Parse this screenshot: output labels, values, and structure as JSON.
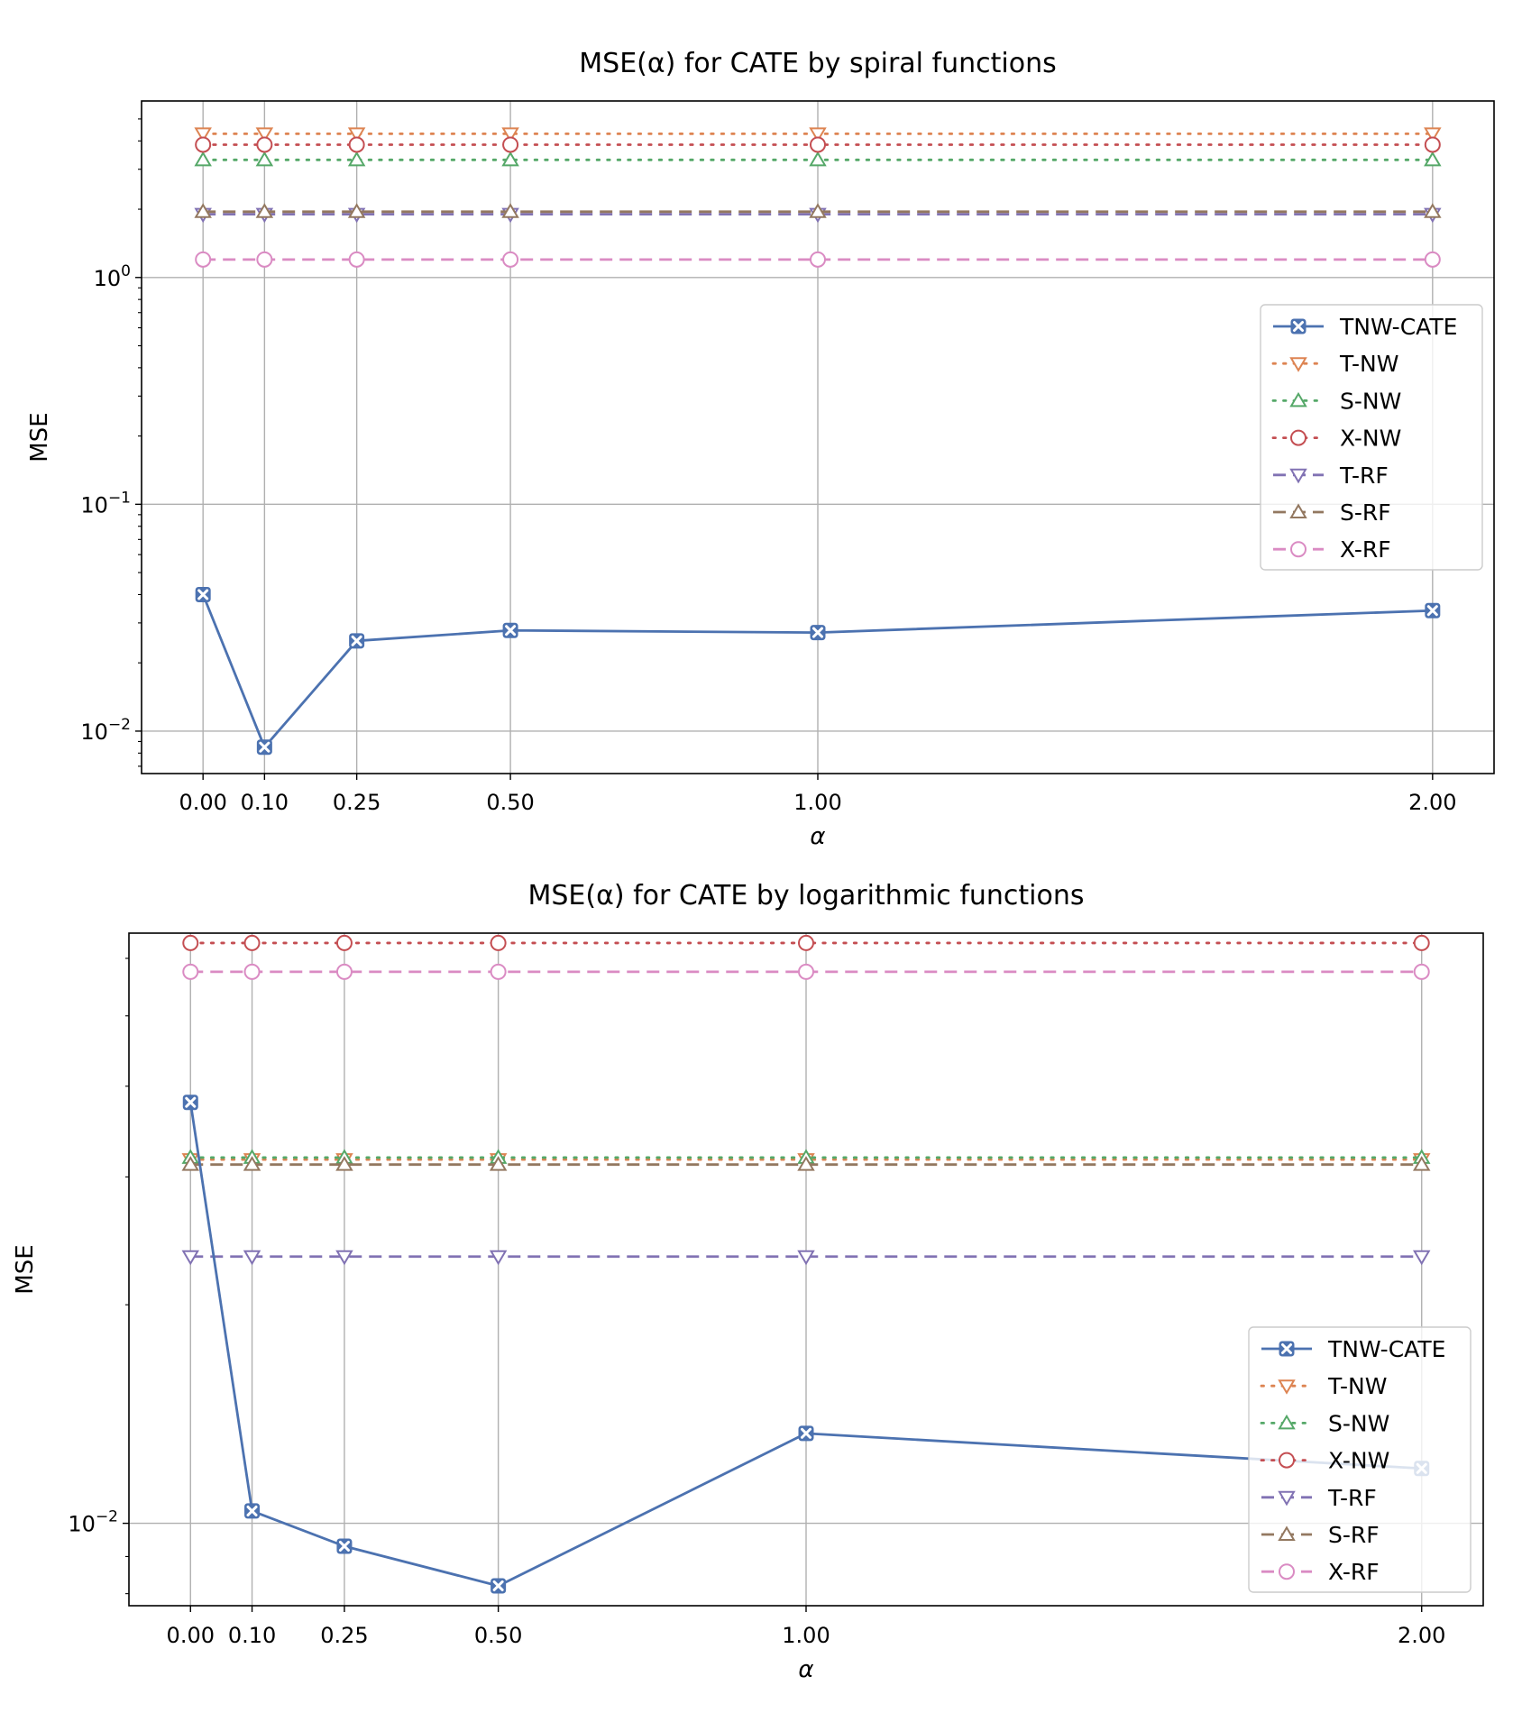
{
  "chart_data": [
    {
      "type": "line",
      "title": "MSE(α) for CATE by spiral functions",
      "xlabel": "α",
      "ylabel": "MSE",
      "yscale": "log",
      "ylim": [
        0.0065,
        6.0
      ],
      "xlim": [
        -0.1,
        2.1
      ],
      "x": [
        0.0,
        0.1,
        0.25,
        0.5,
        1.0,
        2.0
      ],
      "x_tick_labels": [
        "0.00",
        "0.10",
        "0.25",
        "0.50",
        "1.00",
        "2.00"
      ],
      "y_ticks": [
        {
          "value": 0.01,
          "base": "10",
          "exp": "−2"
        },
        {
          "value": 0.1,
          "base": "10",
          "exp": "−1"
        },
        {
          "value": 1.0,
          "base": "10",
          "exp": "0"
        }
      ],
      "minor_y_ticks": [
        0.007,
        0.008,
        0.009,
        0.02,
        0.03,
        0.04,
        0.05,
        0.06,
        0.07,
        0.08,
        0.09,
        0.2,
        0.3,
        0.4,
        0.5,
        0.6,
        0.7,
        0.8,
        0.9,
        2,
        3,
        4,
        5
      ],
      "grid": true,
      "legend_position": "center-right",
      "series": [
        {
          "name": "TNW-CATE",
          "values": [
            0.04,
            0.0085,
            0.025,
            0.0278,
            0.0272,
            0.034
          ],
          "color": "#4c72b0",
          "marker": "x-box",
          "dash": "solid"
        },
        {
          "name": "T-NW",
          "values": [
            4.3,
            4.3,
            4.3,
            4.3,
            4.3,
            4.3
          ],
          "color": "#dd8452",
          "marker": "triangle-down",
          "dash": "dotted"
        },
        {
          "name": "S-NW",
          "values": [
            3.3,
            3.3,
            3.3,
            3.3,
            3.3,
            3.3
          ],
          "color": "#55a868",
          "marker": "triangle-up",
          "dash": "dotted"
        },
        {
          "name": "X-NW",
          "values": [
            3.85,
            3.85,
            3.85,
            3.85,
            3.85,
            3.85
          ],
          "color": "#c44e52",
          "marker": "circle",
          "dash": "dotted"
        },
        {
          "name": "T-RF",
          "values": [
            1.9,
            1.9,
            1.9,
            1.9,
            1.9,
            1.9
          ],
          "color": "#8172b3",
          "marker": "triangle-down",
          "dash": "dashed"
        },
        {
          "name": "S-RF",
          "values": [
            1.95,
            1.95,
            1.95,
            1.95,
            1.95,
            1.95
          ],
          "color": "#937860",
          "marker": "triangle-up",
          "dash": "dashed"
        },
        {
          "name": "X-RF",
          "values": [
            1.2,
            1.2,
            1.2,
            1.2,
            1.2,
            1.2
          ],
          "color": "#da8bc3",
          "marker": "circle",
          "dash": "dashed"
        }
      ]
    },
    {
      "type": "line",
      "title": "MSE(α) for CATE by logarithmic functions",
      "xlabel": "α",
      "ylabel": "MSE",
      "yscale": "log",
      "ylim": [
        0.0077,
        0.065
      ],
      "xlim": [
        -0.1,
        2.1
      ],
      "x": [
        0.0,
        0.1,
        0.25,
        0.5,
        1.0,
        2.0
      ],
      "x_tick_labels": [
        "0.00",
        "0.10",
        "0.25",
        "0.50",
        "1.00",
        "2.00"
      ],
      "y_ticks": [
        {
          "value": 0.01,
          "base": "10",
          "exp": "−2"
        }
      ],
      "minor_y_ticks": [
        0.008,
        0.009,
        0.02,
        0.03,
        0.04,
        0.05,
        0.06
      ],
      "grid": true,
      "legend_position": "lower-right",
      "series": [
        {
          "name": "TNW-CATE",
          "values": [
            0.038,
            0.0104,
            0.0093,
            0.0082,
            0.0133,
            0.0119
          ],
          "color": "#4c72b0",
          "marker": "x-box",
          "dash": "solid"
        },
        {
          "name": "T-NW",
          "values": [
            0.0317,
            0.0317,
            0.0317,
            0.0317,
            0.0317,
            0.0317
          ],
          "color": "#dd8452",
          "marker": "triangle-down",
          "dash": "dotted"
        },
        {
          "name": "S-NW",
          "values": [
            0.0319,
            0.0319,
            0.0319,
            0.0319,
            0.0319,
            0.0319
          ],
          "color": "#55a868",
          "marker": "triangle-up",
          "dash": "dotted"
        },
        {
          "name": "X-NW",
          "values": [
            0.063,
            0.063,
            0.063,
            0.063,
            0.063,
            0.063
          ],
          "color": "#c44e52",
          "marker": "circle",
          "dash": "dotted"
        },
        {
          "name": "T-RF",
          "values": [
            0.0233,
            0.0233,
            0.0233,
            0.0233,
            0.0233,
            0.0233
          ],
          "color": "#8172b3",
          "marker": "triangle-down",
          "dash": "dashed"
        },
        {
          "name": "S-RF",
          "values": [
            0.0312,
            0.0312,
            0.0312,
            0.0312,
            0.0312,
            0.0312
          ],
          "color": "#937860",
          "marker": "triangle-up",
          "dash": "dashed"
        },
        {
          "name": "X-RF",
          "values": [
            0.0575,
            0.0575,
            0.0575,
            0.0575,
            0.0575,
            0.0575
          ],
          "color": "#da8bc3",
          "marker": "circle",
          "dash": "dashed"
        }
      ]
    }
  ]
}
